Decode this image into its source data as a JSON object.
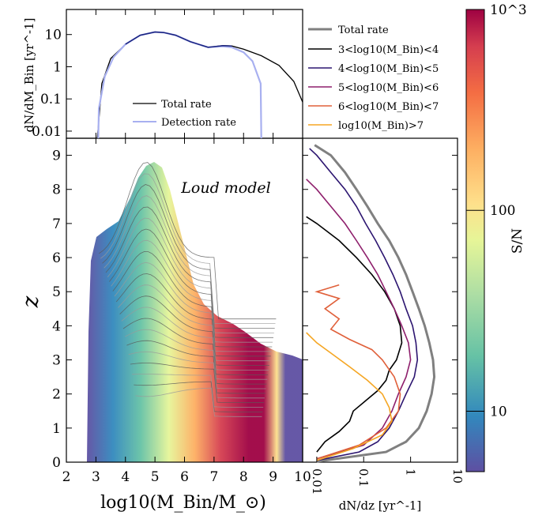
{
  "chart_data": [
    {
      "type": "line",
      "panel": "top",
      "ylabel": "dN/dM_Bin [yr^-1]",
      "xlim": [
        2,
        10
      ],
      "ylim": [
        0.006,
        60
      ],
      "yscale": "log",
      "ytick_labels": [
        "10",
        "1",
        "0.1",
        "0.01"
      ],
      "ytick_values": [
        10,
        1,
        0.1,
        0.01
      ],
      "legend_position": "lower-center",
      "series": [
        {
          "name": "Total rate",
          "color": "#000000",
          "x": [
            3.05,
            3.2,
            3.5,
            4.0,
            4.5,
            5.0,
            5.3,
            5.7,
            6.2,
            6.8,
            7.3,
            7.6,
            8.0,
            8.6,
            9.2,
            9.7,
            10.0
          ],
          "y": [
            0.006,
            0.3,
            1.8,
            5.0,
            9.5,
            12.0,
            11.5,
            9.5,
            6.0,
            4.0,
            4.5,
            4.4,
            3.5,
            2.2,
            1.1,
            0.35,
            0.08
          ]
        },
        {
          "name": "Detection rate",
          "color": "#a8b0f0",
          "x": [
            3.08,
            3.1,
            3.3,
            3.6,
            4.0,
            4.5,
            5.0,
            5.3,
            5.7,
            6.2,
            6.8,
            7.3,
            7.6,
            8.0,
            8.3,
            8.58,
            8.6
          ],
          "y": [
            0.006,
            0.05,
            0.5,
            2.0,
            5.0,
            9.5,
            12.0,
            11.5,
            9.5,
            6.0,
            4.0,
            4.3,
            4.0,
            2.8,
            1.5,
            0.3,
            0.006
          ]
        }
      ]
    },
    {
      "type": "heatmap",
      "panel": "main",
      "xlabel": "log10(M_Bin/M_⊙)",
      "ylabel": "z",
      "xlim": [
        2,
        10
      ],
      "ylim": [
        0,
        9.5
      ],
      "xticks": [
        "2",
        "3",
        "4",
        "5",
        "6",
        "7",
        "8",
        "9",
        "10"
      ],
      "yticks": [
        "0",
        "1",
        "2",
        "3",
        "4",
        "5",
        "6",
        "7",
        "8",
        "9"
      ],
      "annotation": "Loud model",
      "colorbar": {
        "label": "S/N",
        "scale": "log",
        "range": [
          5,
          1000
        ],
        "tick_labels": [
          "10",
          "100",
          "10^3"
        ],
        "tick_values": [
          10,
          100,
          1000
        ],
        "colormap": "Spectral_r"
      }
    },
    {
      "type": "line",
      "panel": "right",
      "xlabel": "dN/dz [yr^-1]",
      "xscale": "log",
      "xlim": [
        0.005,
        10
      ],
      "ylim": [
        0,
        9.5
      ],
      "xtick_labels": [
        "0.01",
        "0.1",
        "1",
        "10"
      ],
      "xtick_values": [
        0.01,
        0.1,
        1,
        10
      ],
      "legend_position": "upper (above panel)",
      "series": [
        {
          "name": "Total rate",
          "color": "#808080",
          "z": [
            0.02,
            0.3,
            0.6,
            1.0,
            1.5,
            2.0,
            2.5,
            3.0,
            3.5,
            4.0,
            4.5,
            5.0,
            5.5,
            6.0,
            6.5,
            7.0,
            7.5,
            8.0,
            8.5,
            9.0,
            9.3
          ],
          "v": [
            0.01,
            0.3,
            0.8,
            1.5,
            2.2,
            2.8,
            3.2,
            3.0,
            2.5,
            2.0,
            1.5,
            1.1,
            0.8,
            0.55,
            0.35,
            0.2,
            0.12,
            0.07,
            0.04,
            0.02,
            0.009
          ]
        },
        {
          "name": "3<log10(M_Bin)<4",
          "color": "#000000",
          "z": [
            0.3,
            0.6,
            0.9,
            1.2,
            1.5,
            1.8,
            2.1,
            2.4,
            2.7,
            3.0,
            3.5,
            4.0,
            4.5,
            5.0,
            5.5,
            6.0,
            6.5,
            7.0,
            7.2
          ],
          "v": [
            0.01,
            0.015,
            0.03,
            0.05,
            0.06,
            0.11,
            0.2,
            0.3,
            0.35,
            0.5,
            0.65,
            0.6,
            0.45,
            0.28,
            0.15,
            0.07,
            0.03,
            0.01,
            0.006
          ]
        },
        {
          "name": "4<log10(M_Bin)<5",
          "color": "#2c1570",
          "z": [
            0.05,
            0.3,
            0.6,
            1.0,
            1.5,
            2.0,
            2.5,
            3.0,
            3.5,
            4.0,
            4.5,
            5.0,
            5.5,
            6.0,
            6.5,
            7.0,
            7.5,
            8.0,
            8.5,
            9.0,
            9.2
          ],
          "v": [
            0.01,
            0.08,
            0.2,
            0.35,
            0.55,
            0.8,
            1.2,
            1.4,
            1.3,
            1.1,
            0.8,
            0.6,
            0.42,
            0.28,
            0.18,
            0.11,
            0.07,
            0.04,
            0.02,
            0.01,
            0.007
          ]
        },
        {
          "name": "5<log10(M_Bin)<6",
          "color": "#8e1f6c",
          "z": [
            0.1,
            0.5,
            1.0,
            1.5,
            2.0,
            2.5,
            3.0,
            3.5,
            4.0,
            4.5,
            5.0,
            5.5,
            6.0,
            6.5,
            7.0,
            7.5,
            8.0,
            8.3
          ],
          "v": [
            0.01,
            0.1,
            0.25,
            0.4,
            0.55,
            0.8,
            1.0,
            0.9,
            0.65,
            0.45,
            0.3,
            0.2,
            0.12,
            0.07,
            0.04,
            0.02,
            0.01,
            0.006
          ]
        },
        {
          "name": "6<log10(M_Bin)<7",
          "color": "#e0603a",
          "z": [
            0.1,
            0.5,
            1.0,
            1.5,
            2.0,
            2.5,
            3.0,
            3.3,
            3.6,
            3.9,
            4.2,
            4.5,
            4.8,
            5.0,
            5.2
          ],
          "v": [
            0.01,
            0.08,
            0.3,
            0.55,
            0.6,
            0.45,
            0.25,
            0.15,
            0.05,
            0.02,
            0.03,
            0.015,
            0.03,
            0.01,
            0.03
          ]
        },
        {
          "name": "log10(M_Bin)>7",
          "color": "#f5a623",
          "z": [
            0.05,
            0.4,
            0.8,
            1.2,
            1.6,
            2.0,
            2.4,
            2.8,
            3.2,
            3.5,
            3.8
          ],
          "v": [
            0.01,
            0.06,
            0.25,
            0.4,
            0.35,
            0.25,
            0.12,
            0.05,
            0.02,
            0.01,
            0.006
          ]
        }
      ]
    }
  ]
}
